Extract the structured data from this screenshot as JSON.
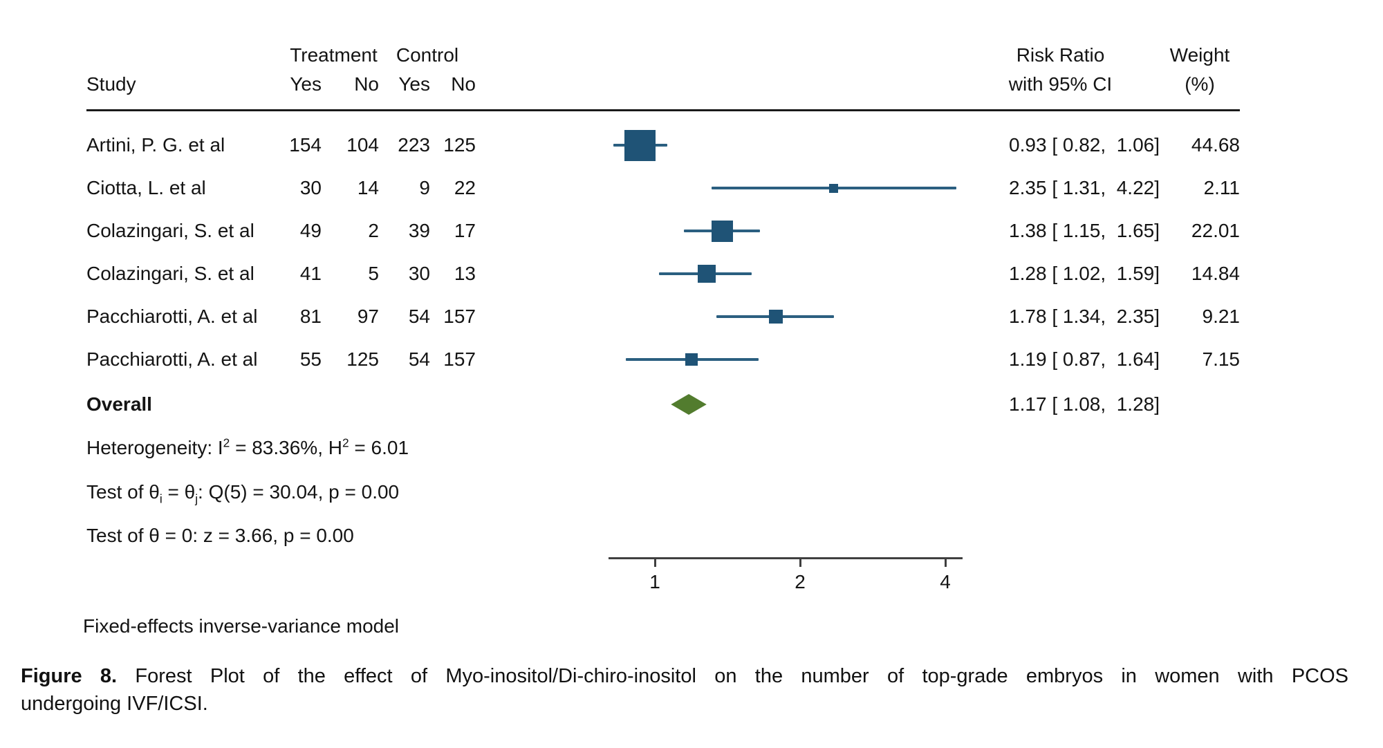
{
  "header": {
    "study": "Study",
    "treatment": "Treatment",
    "control": "Control",
    "yes1": "Yes",
    "no1": "No",
    "yes2": "Yes",
    "no2": "No",
    "risk_ratio_line1": "Risk Ratio",
    "risk_ratio_line2": "with 95% CI",
    "weight_line1": "Weight",
    "weight_line2": "(%)"
  },
  "chart_data": {
    "type": "forest",
    "x_axis": {
      "scale": "log2",
      "ticks": [
        1,
        2,
        4
      ],
      "tick_labels": [
        "1",
        "2",
        "4"
      ]
    },
    "effect_measure": "Risk Ratio",
    "studies": [
      {
        "study": "Artini, P. G. et al",
        "treatment_yes": 154,
        "treatment_no": 104,
        "control_yes": 223,
        "control_no": 125,
        "rr": 0.93,
        "ci_low": 0.82,
        "ci_high": 1.06,
        "rr_label": "0.93 [ 0.82,  1.06]",
        "weight": 44.68,
        "weight_label": "44.68"
      },
      {
        "study": "Ciotta, L. et al",
        "treatment_yes": 30,
        "treatment_no": 14,
        "control_yes": 9,
        "control_no": 22,
        "rr": 2.35,
        "ci_low": 1.31,
        "ci_high": 4.22,
        "rr_label": "2.35 [ 1.31,  4.22]",
        "weight": 2.11,
        "weight_label": "2.11"
      },
      {
        "study": "Colazingari, S. et al",
        "treatment_yes": 49,
        "treatment_no": 2,
        "control_yes": 39,
        "control_no": 17,
        "rr": 1.38,
        "ci_low": 1.15,
        "ci_high": 1.65,
        "rr_label": "1.38 [ 1.15,  1.65]",
        "weight": 22.01,
        "weight_label": "22.01"
      },
      {
        "study": "Colazingari, S. et al",
        "treatment_yes": 41,
        "treatment_no": 5,
        "control_yes": 30,
        "control_no": 13,
        "rr": 1.28,
        "ci_low": 1.02,
        "ci_high": 1.59,
        "rr_label": "1.28 [ 1.02,  1.59]",
        "weight": 14.84,
        "weight_label": "14.84"
      },
      {
        "study": "Pacchiarotti, A. et al",
        "treatment_yes": 81,
        "treatment_no": 97,
        "control_yes": 54,
        "control_no": 157,
        "rr": 1.78,
        "ci_low": 1.34,
        "ci_high": 2.35,
        "rr_label": "1.78 [ 1.34,  2.35]",
        "weight": 9.21,
        "weight_label": "9.21"
      },
      {
        "study": "Pacchiarotti, A. et al",
        "treatment_yes": 55,
        "treatment_no": 125,
        "control_yes": 54,
        "control_no": 157,
        "rr": 1.19,
        "ci_low": 0.87,
        "ci_high": 1.64,
        "rr_label": "1.19 [ 0.87,  1.64]",
        "weight": 7.15,
        "weight_label": "7.15"
      }
    ],
    "overall": {
      "label": "Overall",
      "rr": 1.17,
      "ci_low": 1.08,
      "ci_high": 1.28,
      "rr_label": "1.17 [ 1.08,  1.28]"
    }
  },
  "stats": {
    "heterogeneity": {
      "p1": "Heterogeneity: I",
      "sup1": "2",
      "p2": " = 83.36%, H",
      "sup2": "2",
      "p3": " = 6.01"
    },
    "test_q": {
      "p1": "Test of θ",
      "sub1": "i",
      "p2": " = θ",
      "sub2": "j",
      "p3": ": Q(5) = 30.04, p = 0.00"
    },
    "test_z": "Test of θ = 0: z = 3.66, p = 0.00"
  },
  "model_note": "Fixed-effects inverse-variance model",
  "caption": {
    "label": "Figure 8.",
    "line1": "Forest Plot of the effect of Myo-inositol/Di-chiro-inositol on the number of top-grade embryos in women with PCOS",
    "line2": "undergoing IVF/ICSI."
  },
  "colors": {
    "marker": "#1F5376",
    "ci_line": "#2B5F80",
    "diamond": "#527C2E",
    "axis": "#3F3F3F",
    "text": "#141414"
  }
}
